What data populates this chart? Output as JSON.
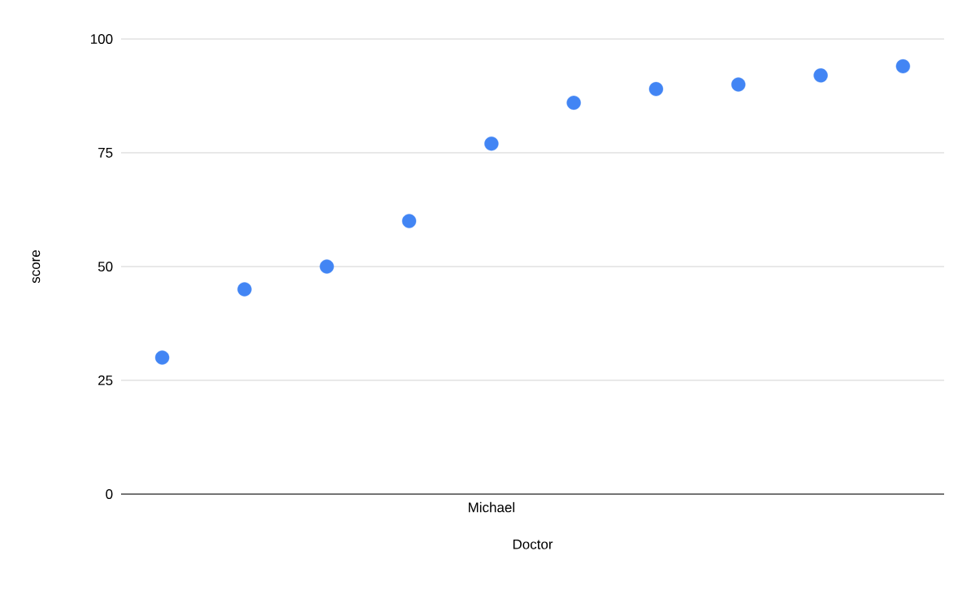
{
  "chart_data": {
    "type": "scatter",
    "xlabel": "Doctor",
    "ylabel": "score",
    "categories": [
      null,
      null,
      null,
      null,
      "Michael",
      null,
      null,
      null,
      null,
      null
    ],
    "series": [
      {
        "color": "#4285f4",
        "values": [
          30,
          45,
          50,
          60,
          77,
          86,
          89,
          90,
          92,
          94
        ]
      }
    ],
    "ylim": [
      0,
      100
    ],
    "yticks": [
      0,
      25,
      50,
      75,
      100
    ],
    "grid": "y",
    "marker": "circle"
  }
}
